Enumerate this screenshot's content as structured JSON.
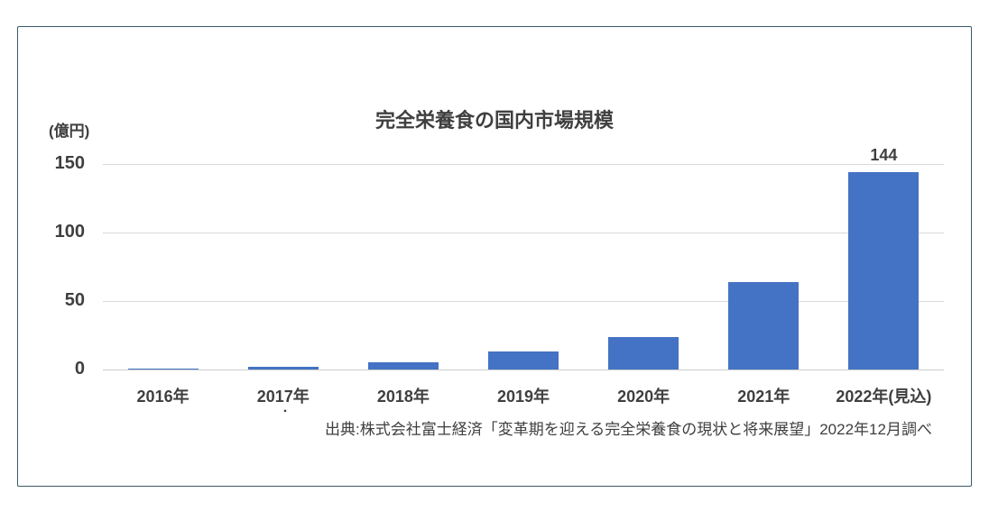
{
  "chart_data": {
    "type": "bar",
    "title": "完全栄養食の国内市場規模",
    "unit_label": "(億円)",
    "categories": [
      "2016年",
      "2017年",
      "2018年",
      "2019年",
      "2020年",
      "2021年",
      "2022年(見込)"
    ],
    "values": [
      0.5,
      2,
      5,
      13,
      24,
      64,
      144
    ],
    "value_labels": [
      "",
      "",
      "",
      "",
      "",
      "",
      "144"
    ],
    "ylim": [
      0,
      150
    ],
    "yticks": [
      0,
      50,
      100,
      150
    ],
    "grid": "horizontal",
    "legend": "none",
    "source": "出典:株式会社富士経済「変革期を迎える完全栄養食の現状と将来展望」2022年12月調べ",
    "stray_mark": "."
  },
  "colors": {
    "bar": "#4472C4",
    "grid": "#d9d9d9",
    "axis_line": "#cccccc",
    "text": "#3f3f3f",
    "frame_border": "#3a5a68"
  }
}
